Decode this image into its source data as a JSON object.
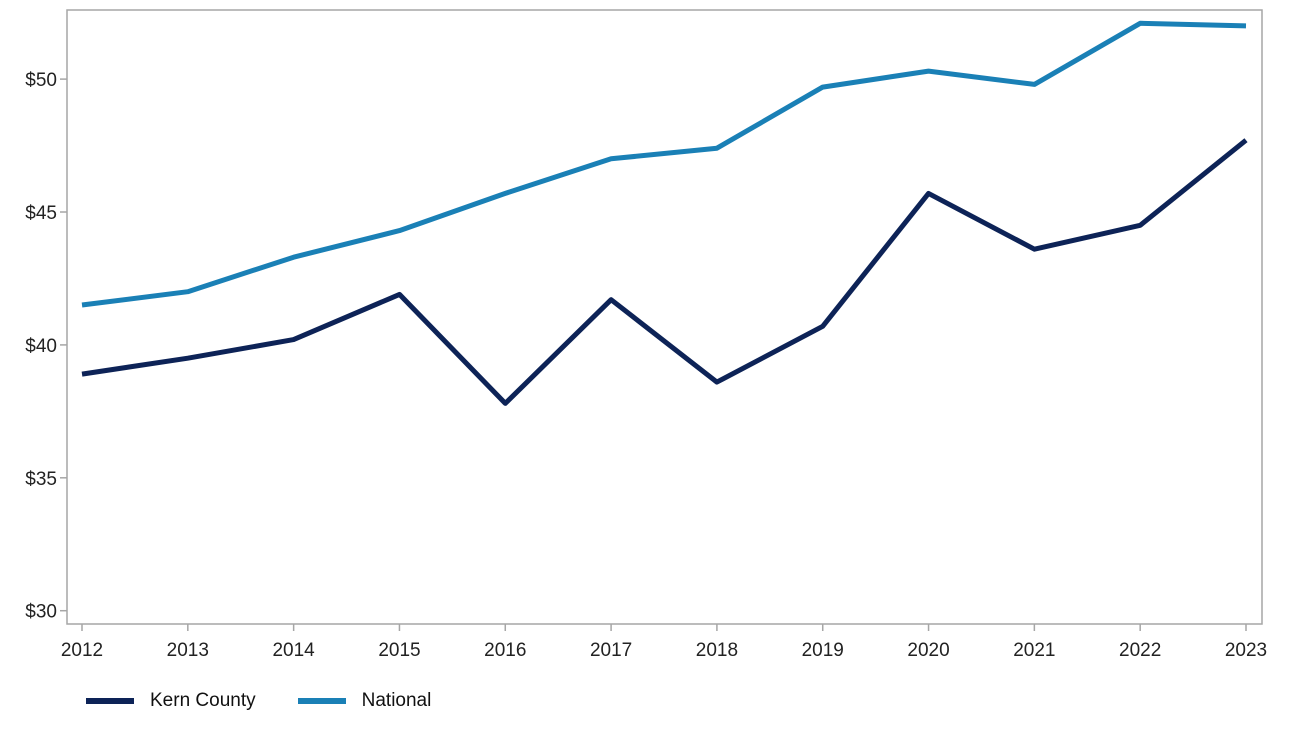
{
  "chart_data": {
    "type": "line",
    "title": "",
    "xlabel": "",
    "ylabel": "",
    "x": [
      "2012",
      "2013",
      "2014",
      "2015",
      "2016",
      "2017",
      "2018",
      "2019",
      "2020",
      "2021",
      "2022",
      "2023"
    ],
    "ylim": [
      29.5,
      52.6
    ],
    "yticks": [
      30,
      35,
      40,
      45,
      50
    ],
    "ytick_labels": [
      "$30",
      "$35",
      "$40",
      "$45",
      "$50"
    ],
    "grid": false,
    "legend_position": "bottom-left",
    "series": [
      {
        "name": "Kern County",
        "color": "#0d2357",
        "values": [
          38.9,
          39.5,
          40.2,
          41.9,
          37.8,
          41.7,
          38.6,
          40.7,
          45.7,
          43.6,
          44.5,
          47.7
        ]
      },
      {
        "name": "National",
        "color": "#1a80b6",
        "values": [
          41.5,
          42.0,
          43.3,
          44.3,
          45.7,
          47.0,
          47.4,
          49.7,
          50.3,
          49.8,
          52.1,
          52.0
        ]
      }
    ]
  }
}
